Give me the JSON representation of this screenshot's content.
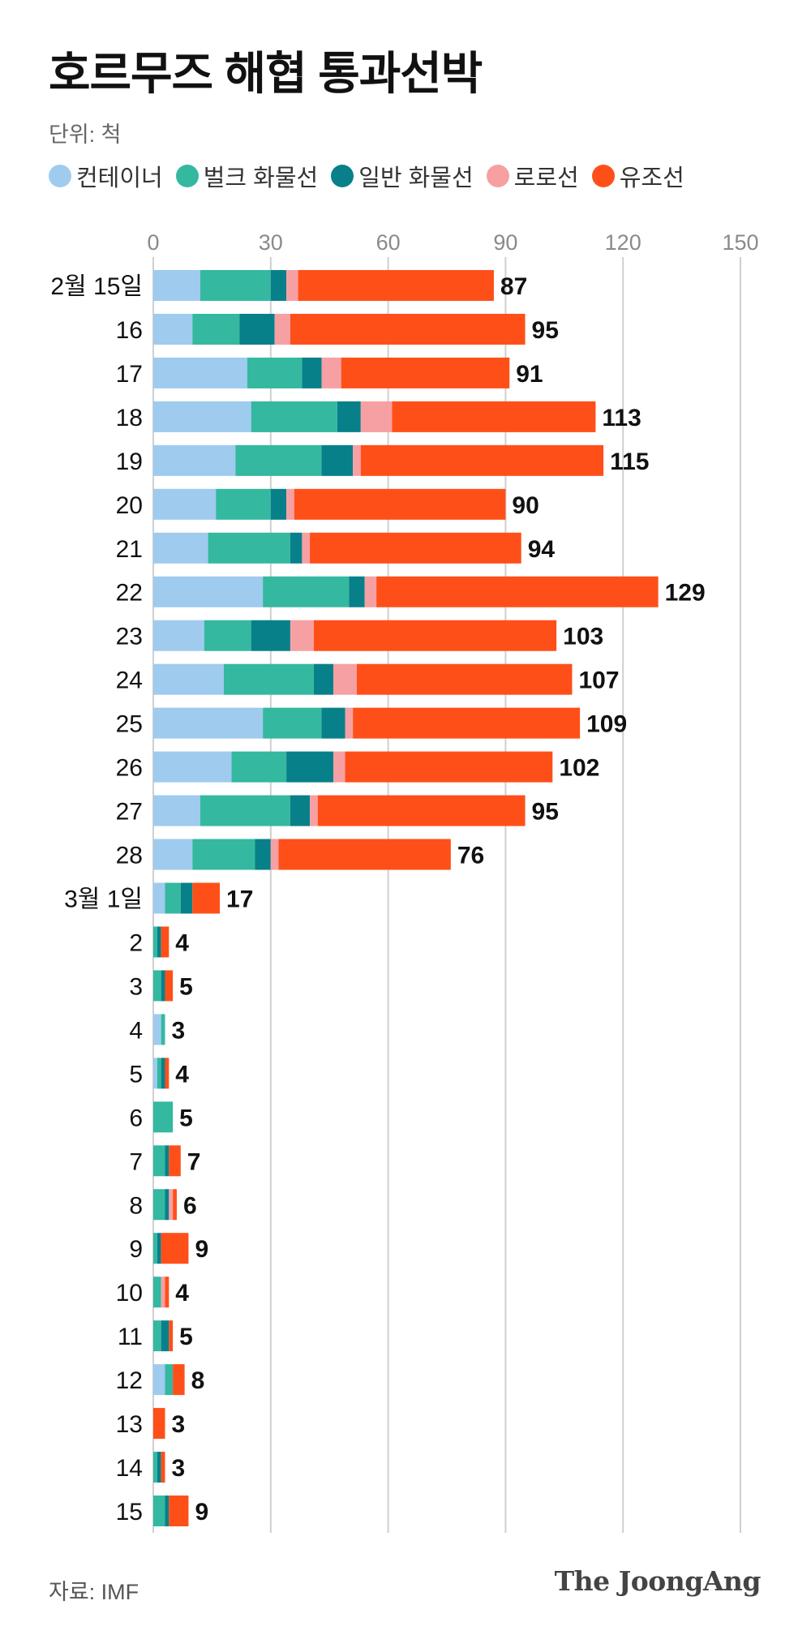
{
  "header": {
    "title": "호르무즈 해협 통과선박",
    "unit": "단위: 척"
  },
  "legend": [
    {
      "label": "컨테이너",
      "color": "#9ECBEE"
    },
    {
      "label": "벌크 화물선",
      "color": "#34B8A0"
    },
    {
      "label": "일반 화물선",
      "color": "#08808A"
    },
    {
      "label": "로로선",
      "color": "#F6A0A4"
    },
    {
      "label": "유조선",
      "color": "#FF4F19"
    }
  ],
  "chart_data": {
    "type": "bar",
    "orientation": "horizontal",
    "stacked": true,
    "title": "호르무즈 해협 통과선박",
    "unit": "척",
    "xlim": [
      0,
      150
    ],
    "xticks": [
      0,
      30,
      60,
      90,
      120,
      150
    ],
    "grid": true,
    "categories": [
      "2월 15일",
      "16",
      "17",
      "18",
      "19",
      "20",
      "21",
      "22",
      "23",
      "24",
      "25",
      "26",
      "27",
      "28",
      "3월 1일",
      "2",
      "3",
      "4",
      "5",
      "6",
      "7",
      "8",
      "9",
      "10",
      "11",
      "12",
      "13",
      "14",
      "15"
    ],
    "series": [
      {
        "name": "컨테이너",
        "color": "#9ECBEE",
        "values": [
          12,
          10,
          24,
          25,
          21,
          16,
          14,
          28,
          13,
          18,
          28,
          20,
          12,
          10,
          3,
          0,
          0,
          2,
          1,
          0,
          0,
          0,
          0,
          0,
          0,
          3,
          0,
          0,
          0
        ]
      },
      {
        "name": "벌크 화물선",
        "color": "#34B8A0",
        "values": [
          18,
          12,
          14,
          22,
          22,
          14,
          21,
          22,
          12,
          23,
          15,
          14,
          23,
          16,
          4,
          1,
          2,
          1,
          1,
          5,
          3,
          3,
          1,
          2,
          2,
          2,
          0,
          1,
          3
        ]
      },
      {
        "name": "일반 화물선",
        "color": "#08808A",
        "values": [
          4,
          9,
          5,
          6,
          8,
          4,
          3,
          4,
          10,
          5,
          6,
          12,
          5,
          4,
          3,
          1,
          1,
          0,
          1,
          0,
          1,
          1,
          1,
          0,
          2,
          0,
          0,
          1,
          1
        ]
      },
      {
        "name": "로로선",
        "color": "#F6A0A4",
        "values": [
          3,
          4,
          5,
          8,
          2,
          2,
          2,
          3,
          6,
          6,
          2,
          3,
          2,
          2,
          0,
          0,
          0,
          0,
          0,
          0,
          0,
          1,
          0,
          1,
          0,
          0,
          0,
          0,
          0
        ]
      },
      {
        "name": "유조선",
        "color": "#FF4F19",
        "values": [
          50,
          60,
          43,
          52,
          62,
          54,
          54,
          72,
          62,
          55,
          58,
          53,
          53,
          44,
          7,
          2,
          2,
          0,
          1,
          0,
          3,
          1,
          7,
          1,
          1,
          3,
          3,
          1,
          5
        ]
      }
    ],
    "totals": [
      87,
      95,
      91,
      113,
      115,
      90,
      94,
      129,
      103,
      107,
      109,
      102,
      95,
      76,
      17,
      4,
      5,
      3,
      4,
      5,
      7,
      6,
      9,
      4,
      5,
      8,
      3,
      3,
      9
    ]
  },
  "footer": {
    "source": "자료: IMF",
    "brand": "The JoongAng"
  }
}
